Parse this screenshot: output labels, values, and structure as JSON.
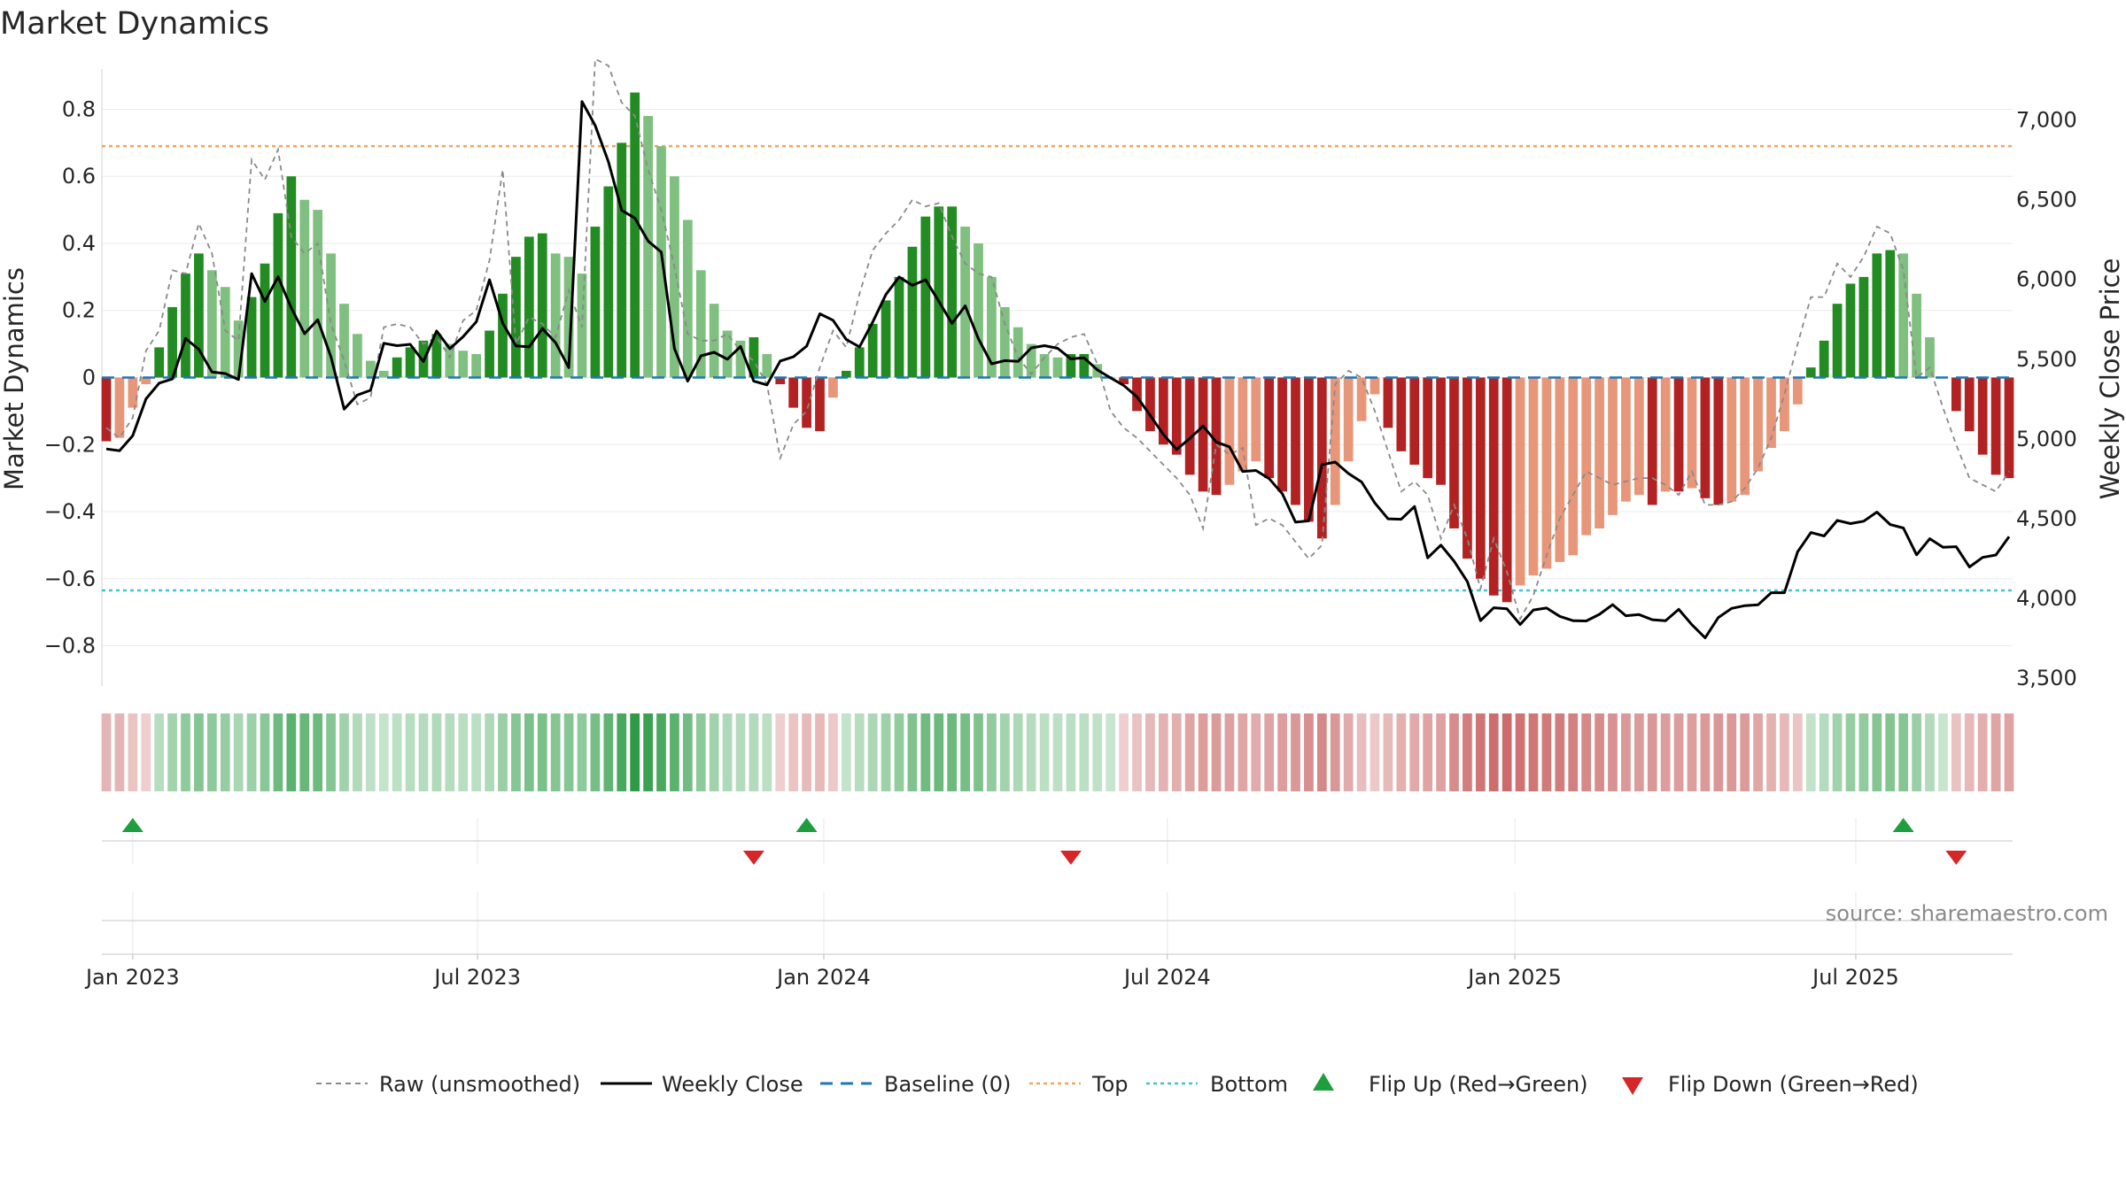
{
  "chart_data": {
    "type": "bar",
    "title": "Market Dynamics",
    "ylabel": "Market Dynamics",
    "y2label": "Weekly Close Price",
    "ylim": [
      -0.92,
      0.92
    ],
    "y2lim": [
      3450,
      7320
    ],
    "yticks": [
      "0.8",
      "0.6",
      "0.4",
      "0.2",
      "0",
      "−0.2",
      "−0.4",
      "−0.6",
      "−0.8"
    ],
    "y2ticks": [
      "7,000",
      "6,500",
      "6,000",
      "5,500",
      "5,000",
      "4,500",
      "4,000",
      "3,500"
    ],
    "xticks": [
      "Jan 2023",
      "Jul 2023",
      "Jan 2024",
      "Jul 2024",
      "Jan 2025",
      "Jul 2025"
    ],
    "top_level": 0.69,
    "bottom_level": -0.635,
    "grid": true,
    "source": "source: sharemaestro.com",
    "legend": [
      {
        "label": "Raw (unsmoothed)",
        "kind": "dashed-gray"
      },
      {
        "label": "Weekly Close",
        "kind": "solid-black"
      },
      {
        "label": "Baseline (0)",
        "kind": "dashed-blue"
      },
      {
        "label": "Top",
        "kind": "dotted-orange"
      },
      {
        "label": "Bottom",
        "kind": "dotted-cyan"
      },
      {
        "label": "Flip Up (Red→Green)",
        "kind": "triangle-up"
      },
      {
        "label": "Flip Down (Green→Red)",
        "kind": "triangle-down"
      }
    ],
    "colors": {
      "strong_up": "#228b22",
      "weak_up": "#7fbf7f",
      "strong_down": "#b22222",
      "weak_down": "#e8967a",
      "raw": "#8a8a8a",
      "close": "#000000",
      "baseline": "#1f77b4",
      "top": "#f4a460",
      "bottom": "#40c4d0",
      "flip_up": "#1e9e3e",
      "flip_down": "#d62728"
    },
    "start_week": "2022-12-19",
    "series": [
      {
        "name": "Market Dynamics",
        "values": [
          -0.19,
          -0.18,
          -0.09,
          -0.02,
          0.09,
          0.21,
          0.31,
          0.37,
          0.32,
          0.27,
          0.17,
          0.24,
          0.34,
          0.49,
          0.6,
          0.53,
          0.5,
          0.37,
          0.22,
          0.13,
          0.05,
          0.02,
          0.06,
          0.09,
          0.11,
          0.13,
          0.1,
          0.08,
          0.07,
          0.14,
          0.25,
          0.36,
          0.42,
          0.43,
          0.37,
          0.36,
          0.31,
          0.45,
          0.57,
          0.7,
          0.85,
          0.78,
          0.69,
          0.6,
          0.47,
          0.32,
          0.22,
          0.14,
          0.11,
          0.12,
          0.07,
          -0.02,
          -0.09,
          -0.15,
          -0.16,
          -0.06,
          0.02,
          0.09,
          0.16,
          0.23,
          0.3,
          0.39,
          0.48,
          0.51,
          0.51,
          0.45,
          0.4,
          0.3,
          0.21,
          0.15,
          0.1,
          0.07,
          0.06,
          0.07,
          0.07,
          0.04,
          0.0,
          -0.02,
          -0.1,
          -0.16,
          -0.2,
          -0.23,
          -0.29,
          -0.34,
          -0.35,
          -0.32,
          -0.28,
          -0.25,
          -0.3,
          -0.34,
          -0.38,
          -0.43,
          -0.48,
          -0.38,
          -0.25,
          -0.13,
          -0.05,
          -0.15,
          -0.22,
          -0.26,
          -0.3,
          -0.32,
          -0.45,
          -0.54,
          -0.6,
          -0.65,
          -0.67,
          -0.62,
          -0.59,
          -0.57,
          -0.55,
          -0.53,
          -0.47,
          -0.45,
          -0.41,
          -0.37,
          -0.35,
          -0.38,
          -0.34,
          -0.34,
          -0.33,
          -0.36,
          -0.38,
          -0.37,
          -0.35,
          -0.28,
          -0.21,
          -0.16,
          -0.08,
          0.03,
          0.11,
          0.22,
          0.28,
          0.3,
          0.37,
          0.38,
          0.37,
          0.25,
          0.12,
          0.0,
          -0.1,
          -0.16,
          -0.23,
          -0.29,
          -0.3
        ]
      },
      {
        "name": "Raw (unsmoothed)",
        "values": [
          -0.15,
          -0.18,
          -0.12,
          0.08,
          0.14,
          0.32,
          0.31,
          0.46,
          0.37,
          0.14,
          0.11,
          0.65,
          0.59,
          0.68,
          0.42,
          0.37,
          0.4,
          0.16,
          0.05,
          -0.08,
          -0.06,
          0.15,
          0.16,
          0.15,
          0.1,
          0.12,
          0.06,
          0.17,
          0.2,
          0.35,
          0.62,
          0.1,
          0.18,
          0.16,
          0.12,
          0.26,
          0.15,
          0.95,
          0.93,
          0.82,
          0.78,
          0.62,
          0.5,
          0.33,
          0.13,
          0.11,
          0.11,
          0.13,
          0.08,
          0.05,
          -0.02,
          -0.24,
          -0.14,
          -0.1,
          0.03,
          0.14,
          0.09,
          0.25,
          0.38,
          0.43,
          0.47,
          0.53,
          0.51,
          0.52,
          0.42,
          0.34,
          0.31,
          0.3,
          0.16,
          0.06,
          0.01,
          0.06,
          0.1,
          0.12,
          0.13,
          0.04,
          -0.1,
          -0.15,
          -0.18,
          -0.22,
          -0.26,
          -0.3,
          -0.35,
          -0.45,
          -0.2,
          -0.23,
          -0.21,
          -0.44,
          -0.42,
          -0.44,
          -0.49,
          -0.54,
          -0.5,
          -0.02,
          0.02,
          0.0,
          -0.1,
          -0.22,
          -0.34,
          -0.31,
          -0.35,
          -0.48,
          -0.38,
          -0.48,
          -0.63,
          -0.48,
          -0.58,
          -0.72,
          -0.65,
          -0.53,
          -0.42,
          -0.35,
          -0.28,
          -0.3,
          -0.32,
          -0.31,
          -0.3,
          -0.3,
          -0.32,
          -0.35,
          -0.28,
          -0.38,
          -0.38,
          -0.37,
          -0.33,
          -0.27,
          -0.18,
          -0.05,
          0.1,
          0.24,
          0.24,
          0.34,
          0.3,
          0.36,
          0.45,
          0.43,
          0.32,
          0.0,
          0.03,
          -0.09,
          -0.2,
          -0.3,
          -0.32,
          -0.34,
          -0.28
        ]
      },
      {
        "name": "Weekly Close",
        "values": [
          4937,
          4926,
          5020,
          5251,
          5350,
          5376,
          5630,
          5562,
          5420,
          5410,
          5373,
          6037,
          5862,
          6017,
          5822,
          5660,
          5747,
          5515,
          5187,
          5275,
          5305,
          5600,
          5585,
          5593,
          5485,
          5677,
          5566,
          5641,
          5735,
          5998,
          5726,
          5584,
          5577,
          5692,
          5603,
          5447,
          7116,
          6966,
          6739,
          6434,
          6385,
          6241,
          6172,
          5566,
          5362,
          5521,
          5543,
          5500,
          5580,
          5362,
          5339,
          5489,
          5515,
          5582,
          5785,
          5744,
          5624,
          5577,
          5733,
          5906,
          6016,
          5963,
          5998,
          5863,
          5724,
          5834,
          5628,
          5471,
          5491,
          5486,
          5571,
          5585,
          5568,
          5502,
          5508,
          5433,
          5383,
          5335,
          5264,
          5148,
          5028,
          4934,
          5003,
          5081,
          4981,
          4950,
          4796,
          4802,
          4751,
          4656,
          4478,
          4486,
          4838,
          4855,
          4783,
          4730,
          4598,
          4499,
          4496,
          4576,
          4254,
          4334,
          4233,
          4106,
          3860,
          3941,
          3934,
          3836,
          3927,
          3939,
          3887,
          3860,
          3858,
          3900,
          3960,
          3891,
          3898,
          3866,
          3859,
          3931,
          3834,
          3752,
          3880,
          3937,
          3954,
          3959,
          4035,
          4035,
          4292,
          4413,
          4391,
          4489,
          4469,
          4484,
          4541,
          4463,
          4441,
          4273,
          4374,
          4320,
          4324,
          4197,
          4257,
          4272,
          4387
        ]
      },
      {
        "name": "Flip Up",
        "x": [
          2,
          53,
          136
        ]
      },
      {
        "name": "Flip Down",
        "x": [
          49,
          73,
          140
        ]
      }
    ]
  }
}
